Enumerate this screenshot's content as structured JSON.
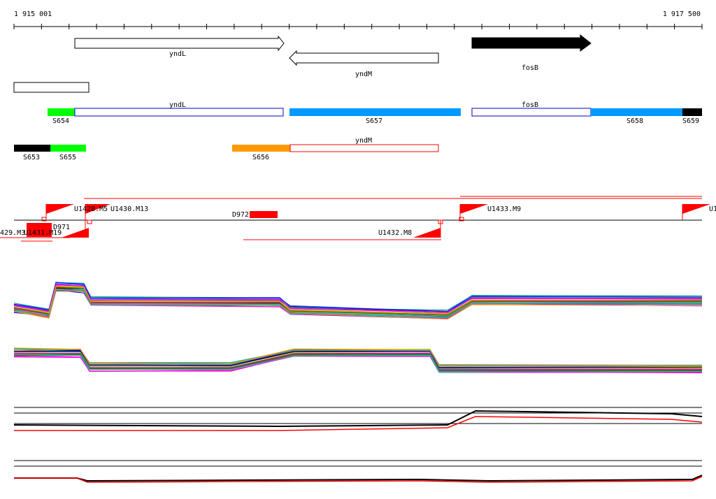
{
  "ruler": {
    "start_label": "1 915 001",
    "end_label": "1 917 500"
  },
  "genes": [
    {
      "name": "yndL",
      "strand": "+",
      "filled": false
    },
    {
      "name": "yndM",
      "strand": "-",
      "filled": false
    },
    {
      "name": "fosB",
      "strand": "+",
      "filled": true
    }
  ],
  "segments": [
    {
      "label": "S654",
      "color": "#00ff00"
    },
    {
      "label": "S657",
      "color": "#0099ff"
    },
    {
      "label": "S658",
      "color": "#0099ff"
    },
    {
      "label": "S659",
      "color": "#000000"
    },
    {
      "label": "S653",
      "color": "#000000"
    },
    {
      "label": "S655",
      "color": "#00ff00"
    },
    {
      "label": "S656",
      "color": "#ff9900"
    }
  ],
  "segment_gene_labels": {
    "yndL": "yndL",
    "fosB": "fosB",
    "yndM": "yndM"
  },
  "features": [
    {
      "label": "U1428.M5"
    },
    {
      "label": "U1430.M13"
    },
    {
      "label": "D972"
    },
    {
      "label": "D971"
    },
    {
      "label": "U1433.M9"
    },
    {
      "label": "U1"
    },
    {
      "label": "429.M3"
    },
    {
      "label": "U1431.M19"
    },
    {
      "label": "U1432.M8"
    }
  ],
  "colors": {
    "feature_red": "#ff0000",
    "outline_blue": "#0000cc"
  }
}
